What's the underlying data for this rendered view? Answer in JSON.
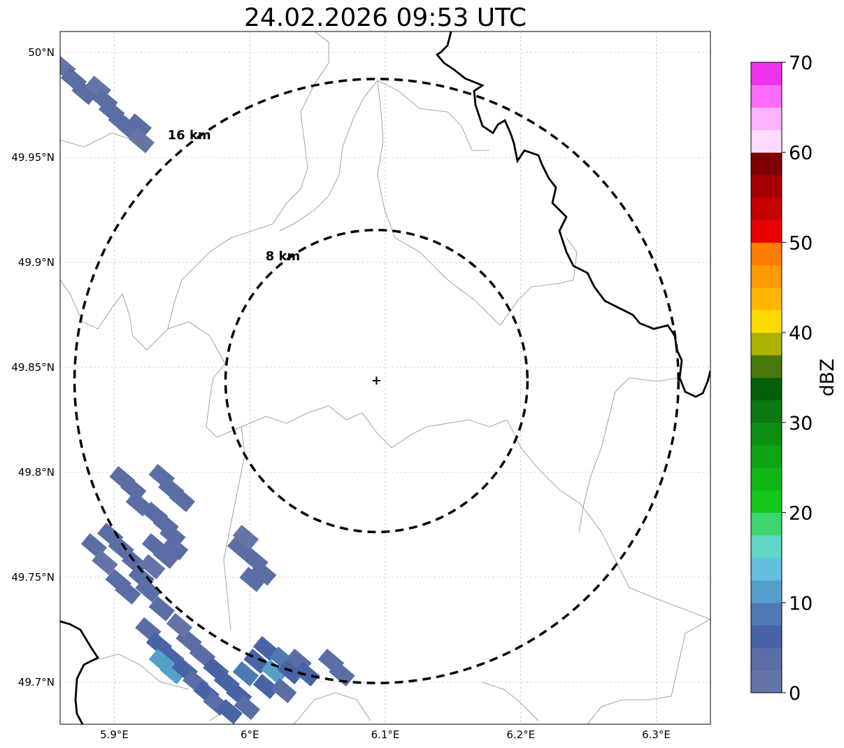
{
  "title": "24.02.2026 09:53 UTC",
  "map": {
    "lon_range": [
      5.86,
      6.34
    ],
    "lat_range": [
      49.68,
      50.01
    ],
    "x_ticks": [
      {
        "value": 5.9,
        "label": "5.9°E"
      },
      {
        "value": 6.0,
        "label": "6°E"
      },
      {
        "value": 6.1,
        "label": "6.1°E"
      },
      {
        "value": 6.2,
        "label": "6.2°E"
      },
      {
        "value": 6.3,
        "label": "6.3°E"
      }
    ],
    "y_ticks": [
      {
        "value": 49.7,
        "label": "49.7°N"
      },
      {
        "value": 49.75,
        "label": "49.75°N"
      },
      {
        "value": 49.8,
        "label": "49.8°N"
      },
      {
        "value": 49.85,
        "label": "49.85°N"
      },
      {
        "value": 49.9,
        "label": "49.9°N"
      },
      {
        "value": 49.95,
        "label": "49.95°N"
      },
      {
        "value": 50.0,
        "label": "50°N"
      }
    ],
    "grid": true,
    "center": {
      "lon": 6.0935,
      "lat": 49.8435
    },
    "rings": [
      {
        "radius_km": 8,
        "label": "8 km"
      },
      {
        "radius_km": 16,
        "label": "16 km"
      }
    ]
  },
  "colorbar": {
    "label": "dBZ",
    "ticks": [
      "0",
      "10",
      "20",
      "30",
      "40",
      "50",
      "60",
      "70"
    ],
    "colors": [
      "#6675a8",
      "#5a6ea5",
      "#4863a6",
      "#4d7ab3",
      "#55a0c9",
      "#64bfdf",
      "#5fd6c6",
      "#3dd66e",
      "#13c81c",
      "#10b617",
      "#0ea315",
      "#0c8f13",
      "#0b7811",
      "#066007",
      "#487809",
      "#aab200",
      "#ffdc00",
      "#ffb700",
      "#ff9a00",
      "#ff7d00",
      "#e60000",
      "#c60000",
      "#a50000",
      "#7f0000",
      "#ffdcff",
      "#ffb4ff",
      "#ff6dff",
      "#ee33ee"
    ]
  },
  "echoes": [
    {
      "lon": 5.862,
      "lat": 49.993,
      "dbz": 2
    },
    {
      "lon": 5.87,
      "lat": 49.987,
      "dbz": 3
    },
    {
      "lon": 5.878,
      "lat": 49.981,
      "dbz": 3
    },
    {
      "lon": 5.888,
      "lat": 49.983,
      "dbz": 2
    },
    {
      "lon": 5.893,
      "lat": 49.977,
      "dbz": 3
    },
    {
      "lon": 5.898,
      "lat": 49.972,
      "dbz": 4
    },
    {
      "lon": 5.905,
      "lat": 49.967,
      "dbz": 3
    },
    {
      "lon": 5.912,
      "lat": 49.963,
      "dbz": 4
    },
    {
      "lon": 5.918,
      "lat": 49.965,
      "dbz": 3
    },
    {
      "lon": 5.92,
      "lat": 49.958,
      "dbz": 2
    },
    {
      "lon": 5.906,
      "lat": 49.797,
      "dbz": 3
    },
    {
      "lon": 5.914,
      "lat": 49.792,
      "dbz": 4
    },
    {
      "lon": 5.918,
      "lat": 49.785,
      "dbz": 3
    },
    {
      "lon": 5.935,
      "lat": 49.798,
      "dbz": 3
    },
    {
      "lon": 5.942,
      "lat": 49.792,
      "dbz": 4
    },
    {
      "lon": 5.95,
      "lat": 49.787,
      "dbz": 3
    },
    {
      "lon": 5.93,
      "lat": 49.78,
      "dbz": 3
    },
    {
      "lon": 5.938,
      "lat": 49.775,
      "dbz": 4
    },
    {
      "lon": 5.943,
      "lat": 49.77,
      "dbz": 3
    },
    {
      "lon": 5.93,
      "lat": 49.765,
      "dbz": 4
    },
    {
      "lon": 5.938,
      "lat": 49.76,
      "dbz": 3
    },
    {
      "lon": 5.945,
      "lat": 49.764,
      "dbz": 4
    },
    {
      "lon": 5.897,
      "lat": 49.77,
      "dbz": 3
    },
    {
      "lon": 5.905,
      "lat": 49.764,
      "dbz": 4
    },
    {
      "lon": 5.885,
      "lat": 49.765,
      "dbz": 3
    },
    {
      "lon": 5.893,
      "lat": 49.757,
      "dbz": 2
    },
    {
      "lon": 5.915,
      "lat": 49.757,
      "dbz": 3
    },
    {
      "lon": 5.92,
      "lat": 49.75,
      "dbz": 4
    },
    {
      "lon": 5.925,
      "lat": 49.744,
      "dbz": 3
    },
    {
      "lon": 5.903,
      "lat": 49.748,
      "dbz": 4
    },
    {
      "lon": 5.91,
      "lat": 49.743,
      "dbz": 3
    },
    {
      "lon": 5.935,
      "lat": 49.735,
      "dbz": 3
    },
    {
      "lon": 5.928,
      "lat": 49.755,
      "dbz": 2
    },
    {
      "lon": 5.993,
      "lat": 49.764,
      "dbz": 3
    },
    {
      "lon": 5.997,
      "lat": 49.769,
      "dbz": 2
    },
    {
      "lon": 6.004,
      "lat": 49.758,
      "dbz": 3
    },
    {
      "lon": 6.01,
      "lat": 49.752,
      "dbz": 4
    },
    {
      "lon": 6.002,
      "lat": 49.749,
      "dbz": 3
    },
    {
      "lon": 5.925,
      "lat": 49.725,
      "dbz": 4
    },
    {
      "lon": 5.933,
      "lat": 49.718,
      "dbz": 5
    },
    {
      "lon": 5.942,
      "lat": 49.712,
      "dbz": 6
    },
    {
      "lon": 5.935,
      "lat": 49.71,
      "dbz": 11
    },
    {
      "lon": 5.943,
      "lat": 49.705,
      "dbz": 12
    },
    {
      "lon": 5.952,
      "lat": 49.706,
      "dbz": 6
    },
    {
      "lon": 5.96,
      "lat": 49.7,
      "dbz": 4
    },
    {
      "lon": 5.968,
      "lat": 49.695,
      "dbz": 5
    },
    {
      "lon": 5.975,
      "lat": 49.69,
      "dbz": 4
    },
    {
      "lon": 5.985,
      "lat": 49.686,
      "dbz": 5
    },
    {
      "lon": 5.955,
      "lat": 49.72,
      "dbz": 3
    },
    {
      "lon": 5.965,
      "lat": 49.713,
      "dbz": 4
    },
    {
      "lon": 5.975,
      "lat": 49.706,
      "dbz": 5
    },
    {
      "lon": 5.983,
      "lat": 49.7,
      "dbz": 6
    },
    {
      "lon": 5.992,
      "lat": 49.694,
      "dbz": 5
    },
    {
      "lon": 5.998,
      "lat": 49.688,
      "dbz": 4
    },
    {
      "lon": 5.997,
      "lat": 49.704,
      "dbz": 9
    },
    {
      "lon": 6.005,
      "lat": 49.71,
      "dbz": 5
    },
    {
      "lon": 6.012,
      "lat": 49.716,
      "dbz": 6
    },
    {
      "lon": 6.018,
      "lat": 49.705,
      "dbz": 11
    },
    {
      "lon": 6.024,
      "lat": 49.711,
      "dbz": 9
    },
    {
      "lon": 6.03,
      "lat": 49.705,
      "dbz": 5
    },
    {
      "lon": 6.036,
      "lat": 49.71,
      "dbz": 4
    },
    {
      "lon": 6.042,
      "lat": 49.704,
      "dbz": 5
    },
    {
      "lon": 6.012,
      "lat": 49.698,
      "dbz": 5
    },
    {
      "lon": 6.025,
      "lat": 49.696,
      "dbz": 4
    },
    {
      "lon": 5.948,
      "lat": 49.727,
      "dbz": 2
    },
    {
      "lon": 6.06,
      "lat": 49.71,
      "dbz": 3
    },
    {
      "lon": 6.068,
      "lat": 49.704,
      "dbz": 3
    }
  ],
  "labels": {
    "center_marker": "+"
  }
}
